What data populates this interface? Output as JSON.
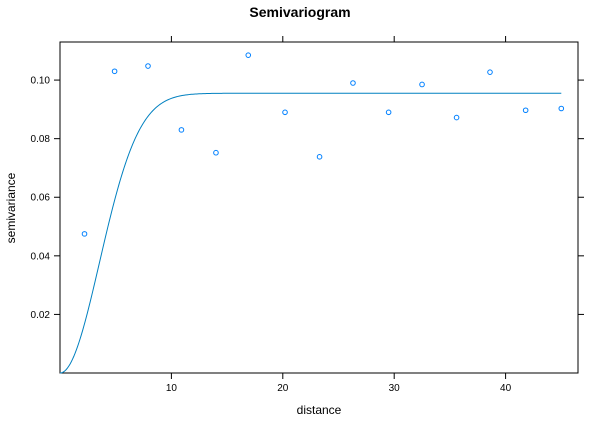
{
  "chart_data": {
    "type": "scatter",
    "title": "Semivariogram",
    "xlabel": "distance",
    "ylabel": "semivariance",
    "xlim": [
      0,
      46.5
    ],
    "ylim": [
      0,
      0.113
    ],
    "xticks": [
      10,
      20,
      30,
      40
    ],
    "yticks": [
      0.02,
      0.04,
      0.06,
      0.08,
      0.1
    ],
    "ytick_labels": [
      "0.02",
      "0.04",
      "0.06",
      "0.08",
      "0.10"
    ],
    "grid": false,
    "points_color": "#0080ff",
    "line_color": "#0080c0",
    "series": [
      {
        "type": "scatter",
        "x": [
          2.2,
          4.9,
          7.9,
          10.9,
          14.0,
          16.9,
          20.2,
          23.3,
          26.3,
          29.5,
          32.5,
          35.6,
          38.6,
          41.8,
          45.0
        ],
        "y": [
          0.0475,
          0.103,
          0.1048,
          0.083,
          0.0752,
          0.1085,
          0.089,
          0.0738,
          0.099,
          0.089,
          0.0985,
          0.0872,
          0.1027,
          0.0897,
          0.0903
        ]
      },
      {
        "type": "line",
        "model": "gaussian",
        "nugget": 0,
        "sill": 0.0955,
        "range": 5.0,
        "x_from": 0,
        "x_to": 45
      }
    ]
  }
}
